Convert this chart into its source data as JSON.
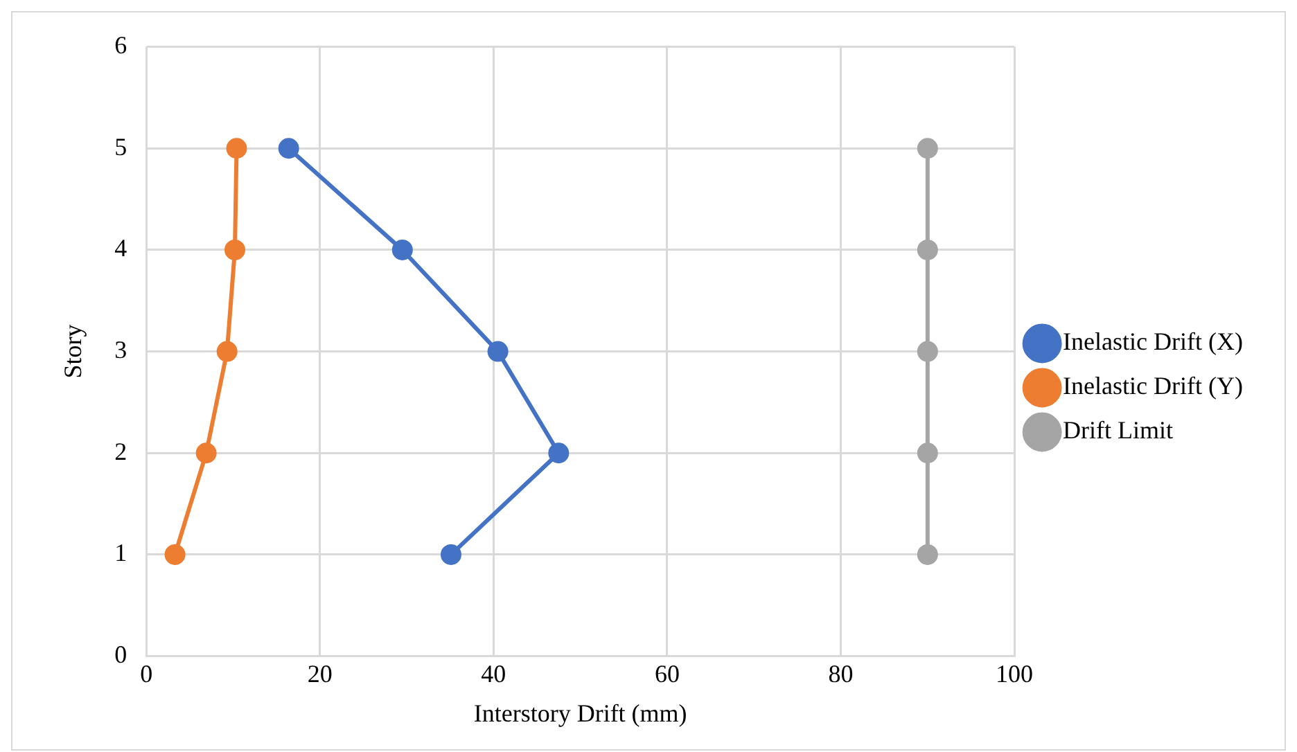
{
  "chart_data": {
    "type": "line",
    "xlabel": "Interstory Drift (mm)",
    "ylabel": "Story",
    "xlim": [
      0,
      100
    ],
    "xticks": [
      0,
      20,
      40,
      60,
      80,
      100
    ],
    "ylim": [
      0,
      6
    ],
    "yticks": [
      0,
      1,
      2,
      3,
      4,
      5,
      6
    ],
    "grid": true,
    "legend": "right",
    "marker": "circle",
    "line_style": "solid",
    "series": [
      {
        "name": "Inelastic Drift (X)",
        "color": "#4472c4",
        "x": [
          16.4,
          29.5,
          40.5,
          47.5,
          35.1
        ],
        "values": [
          5,
          4,
          3,
          2,
          1
        ]
      },
      {
        "name": "Inelastic Drift (Y)",
        "color": "#ed7d31",
        "x": [
          10.4,
          10.2,
          9.3,
          6.9,
          3.3
        ],
        "values": [
          5,
          4,
          3,
          2,
          1
        ]
      },
      {
        "name": "Drift Limit",
        "color": "#a5a5a5",
        "x": [
          90,
          90,
          90,
          90,
          90
        ],
        "values": [
          5,
          4,
          3,
          2,
          1
        ]
      }
    ]
  }
}
